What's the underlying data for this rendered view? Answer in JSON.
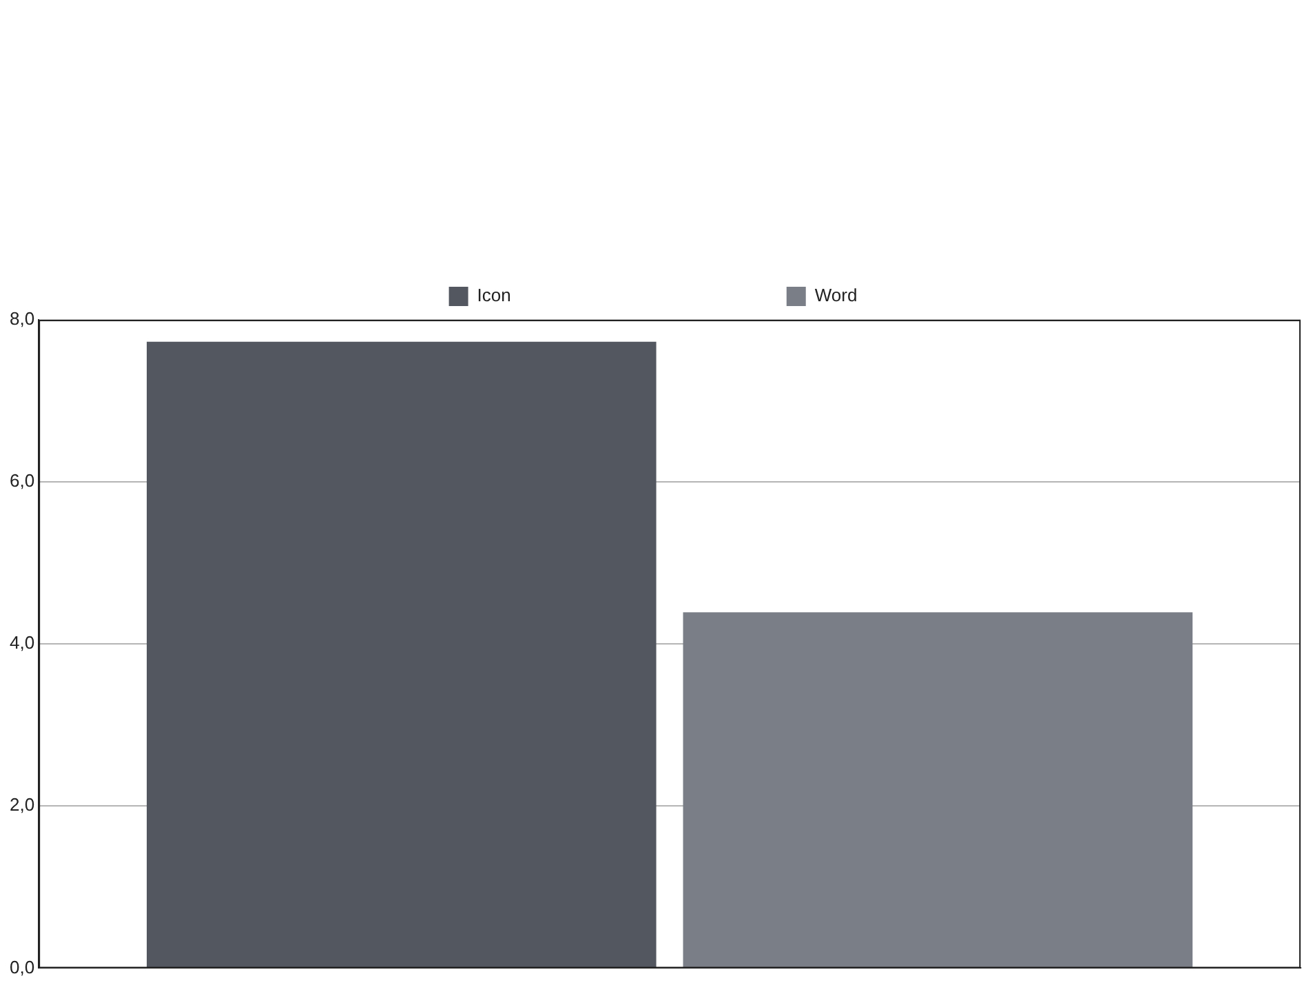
{
  "chart_data": {
    "type": "bar",
    "categories": [
      null
    ],
    "series": [
      {
        "name": "Icon",
        "color": "#535760",
        "values": [
          7.73
        ]
      },
      {
        "name": "Word",
        "color": "#7a7f87",
        "values": [
          4.39
        ]
      }
    ],
    "ylim": [
      0,
      8
    ],
    "yticks": [
      {
        "value": 0,
        "label": "0,0"
      },
      {
        "value": 2,
        "label": "2,0"
      },
      {
        "value": 4,
        "label": "4,0"
      },
      {
        "value": 6,
        "label": "6,0"
      },
      {
        "value": 8,
        "label": "8,0"
      }
    ],
    "grid": "y",
    "legend": "top",
    "tick_labels": "y"
  }
}
